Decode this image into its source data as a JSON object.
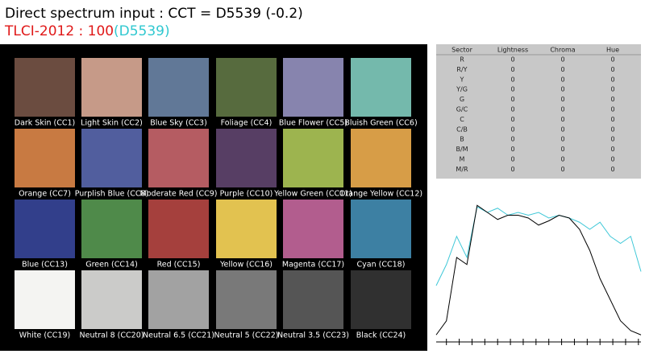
{
  "header": {
    "title": "Direct spectrum input : CCT = D5539 (-0.2)",
    "tlci": "TLCI-2012 : 100",
    "reference": "(D5539)"
  },
  "patches": [
    {
      "label": "Dark Skin (CC1)",
      "color": "#6b4c40"
    },
    {
      "label": "Light Skin (CC2)",
      "color": "#c69a88"
    },
    {
      "label": "Blue Sky (CC3)",
      "color": "#617897"
    },
    {
      "label": "Foliage (CC4)",
      "color": "#576b3e"
    },
    {
      "label": "Blue Flower (CC5)",
      "color": "#8784ae"
    },
    {
      "label": "Bluish Green (CC6)",
      "color": "#74b9ac"
    },
    {
      "label": "Orange (CC7)",
      "color": "#c87a42"
    },
    {
      "label": "Purplish Blue (CC8)",
      "color": "#515e9e"
    },
    {
      "label": "Moderate Red (CC9)",
      "color": "#b55c62"
    },
    {
      "label": "Purple (CC10)",
      "color": "#573e64"
    },
    {
      "label": "Yellow Green (CC11)",
      "color": "#9db44f"
    },
    {
      "label": "Orange Yellow (CC12)",
      "color": "#d79d47"
    },
    {
      "label": "Blue (CC13)",
      "color": "#323f8b"
    },
    {
      "label": "Green (CC14)",
      "color": "#4f8a4a"
    },
    {
      "label": "Red (CC15)",
      "color": "#a5403d"
    },
    {
      "label": "Yellow (CC16)",
      "color": "#e2c250"
    },
    {
      "label": "Magenta (CC17)",
      "color": "#b25d8e"
    },
    {
      "label": "Cyan (CC18)",
      "color": "#3d80a3"
    },
    {
      "label": "White (CC19)",
      "color": "#f4f4f2"
    },
    {
      "label": "Neutral 8 (CC20)",
      "color": "#cbcbc9"
    },
    {
      "label": "Neutral 6.5 (CC21)",
      "color": "#a2a2a2"
    },
    {
      "label": "Neutral 5 (CC22)",
      "color": "#797979"
    },
    {
      "label": "Neutral 3.5 (CC23)",
      "color": "#555555"
    },
    {
      "label": "Black (CC24)",
      "color": "#303030"
    }
  ],
  "table": {
    "columns": [
      "Sector",
      "Lightness",
      "Chroma",
      "Hue"
    ],
    "rows": [
      [
        "R",
        0,
        0,
        0
      ],
      [
        "R/Y",
        0,
        0,
        0
      ],
      [
        "Y",
        0,
        0,
        0
      ],
      [
        "Y/G",
        0,
        0,
        0
      ],
      [
        "G",
        0,
        0,
        0
      ],
      [
        "G/C",
        0,
        0,
        0
      ],
      [
        "C",
        0,
        0,
        0
      ],
      [
        "C/B",
        0,
        0,
        0
      ],
      [
        "B",
        0,
        0,
        0
      ],
      [
        "B/M",
        0,
        0,
        0
      ],
      [
        "M",
        0,
        0,
        0
      ],
      [
        "M/R",
        0,
        0,
        0
      ]
    ]
  },
  "chart_data": {
    "type": "line",
    "x": [
      380,
      400,
      420,
      440,
      460,
      480,
      500,
      520,
      540,
      560,
      580,
      600,
      620,
      640,
      660,
      680,
      700,
      720,
      740,
      760,
      780
    ],
    "series": [
      {
        "color": "#40c8d8",
        "values": [
          0.4,
          0.55,
          0.75,
          0.6,
          0.96,
          0.92,
          0.95,
          0.9,
          0.92,
          0.9,
          0.92,
          0.88,
          0.9,
          0.88,
          0.85,
          0.8,
          0.85,
          0.75,
          0.7,
          0.75,
          0.5
        ]
      },
      {
        "color": "#000000",
        "values": [
          0.05,
          0.15,
          0.6,
          0.55,
          0.97,
          0.92,
          0.87,
          0.9,
          0.9,
          0.88,
          0.83,
          0.86,
          0.9,
          0.88,
          0.8,
          0.65,
          0.45,
          0.3,
          0.15,
          0.08,
          0.05
        ]
      }
    ],
    "xlim": [
      380,
      780
    ],
    "ylim": [
      0,
      1
    ],
    "xticks": [
      400,
      425,
      450,
      475,
      500,
      525,
      550,
      575,
      600,
      625,
      650,
      675,
      700,
      725,
      750,
      775
    ]
  }
}
